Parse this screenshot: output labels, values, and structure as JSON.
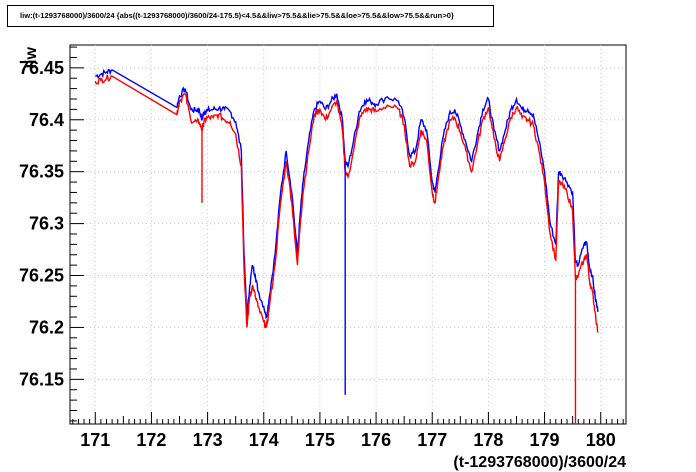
{
  "chart_data": {
    "type": "line",
    "title": "liw:(t-1293768000)/3600/24 {abs((t-1293768000)/3600/24-175.5)<4.5&&liw>75.5&&lie>75.5&&loe>75.5&&low>75.5&&run>0}",
    "xlabel": "(t-1293768000)/3600/24",
    "ylabel": "liw",
    "xlim": [
      170.55,
      180.45
    ],
    "ylim": [
      76.107,
      76.472
    ],
    "xticks": [
      171,
      172,
      173,
      174,
      175,
      176,
      177,
      178,
      179,
      180
    ],
    "yticks": [
      76.15,
      76.2,
      76.25,
      76.3,
      76.35,
      76.4,
      76.45
    ],
    "ytick_labels": [
      "76.15",
      "76.2",
      "76.25",
      "76.3",
      "76.35",
      "76.4",
      "76.45"
    ],
    "grid": true,
    "series": [
      {
        "color": "#0000ff",
        "x": [
          171.0,
          171.1,
          171.2,
          171.3,
          172.45,
          172.5,
          172.6,
          172.7,
          172.8,
          172.85,
          172.9,
          172.92,
          172.95,
          173.0,
          173.1,
          173.2,
          173.3,
          173.4,
          173.5,
          173.6,
          173.65,
          173.7,
          173.75,
          173.8,
          173.85,
          173.9,
          174.0,
          174.05,
          174.1,
          174.2,
          174.3,
          174.4,
          174.5,
          174.6,
          174.65,
          174.7,
          174.8,
          174.9,
          175.0,
          175.1,
          175.2,
          175.3,
          175.4,
          175.45,
          175.5,
          175.6,
          175.7,
          175.8,
          175.9,
          176.0,
          176.2,
          176.4,
          176.5,
          176.6,
          176.7,
          176.8,
          176.9,
          177.0,
          177.05,
          177.1,
          177.2,
          177.3,
          177.4,
          177.5,
          177.6,
          177.7,
          177.8,
          177.9,
          178.0,
          178.1,
          178.2,
          178.3,
          178.4,
          178.5,
          178.6,
          178.7,
          178.8,
          178.9,
          179.0,
          179.1,
          179.2,
          179.25,
          179.3,
          179.4,
          179.5,
          179.55,
          179.6,
          179.7,
          179.75,
          179.8,
          179.85,
          179.9,
          179.95
        ],
        "y": [
          76.442,
          76.444,
          76.446,
          76.448,
          76.412,
          76.423,
          76.43,
          76.41,
          76.409,
          76.41,
          76.4,
          76.405,
          76.408,
          76.409,
          76.41,
          76.411,
          76.41,
          76.408,
          76.398,
          76.37,
          76.27,
          76.21,
          76.24,
          76.26,
          76.25,
          76.235,
          76.22,
          76.21,
          76.23,
          76.27,
          76.33,
          76.37,
          76.33,
          76.27,
          76.31,
          76.34,
          76.38,
          76.41,
          76.418,
          76.41,
          76.418,
          76.425,
          76.4,
          76.36,
          76.355,
          76.38,
          76.408,
          76.418,
          76.418,
          76.415,
          76.422,
          76.418,
          76.402,
          76.365,
          76.37,
          76.4,
          76.39,
          76.34,
          76.33,
          76.35,
          76.385,
          76.405,
          76.41,
          76.395,
          76.378,
          76.36,
          76.385,
          76.41,
          76.42,
          76.39,
          76.37,
          76.39,
          76.41,
          76.42,
          76.41,
          76.41,
          76.405,
          76.38,
          76.35,
          76.3,
          76.28,
          76.35,
          76.348,
          76.34,
          76.33,
          76.262,
          76.26,
          76.28,
          76.282,
          76.258,
          76.25,
          76.23,
          76.215
        ]
      },
      {
        "color": "#ff0000",
        "x": [
          171.0,
          171.1,
          171.2,
          171.3,
          172.45,
          172.5,
          172.6,
          172.7,
          172.8,
          172.85,
          172.9,
          172.92,
          172.95,
          173.0,
          173.1,
          173.2,
          173.3,
          173.4,
          173.5,
          173.6,
          173.65,
          173.7,
          173.75,
          173.8,
          173.85,
          173.9,
          174.0,
          174.05,
          174.1,
          174.2,
          174.3,
          174.4,
          174.5,
          174.6,
          174.65,
          174.7,
          174.8,
          174.9,
          175.0,
          175.1,
          175.2,
          175.3,
          175.4,
          175.45,
          175.5,
          175.6,
          175.7,
          175.8,
          175.9,
          176.0,
          176.2,
          176.4,
          176.5,
          176.6,
          176.7,
          176.8,
          176.9,
          177.0,
          177.05,
          177.1,
          177.2,
          177.3,
          177.4,
          177.5,
          177.6,
          177.7,
          177.8,
          177.9,
          178.0,
          178.1,
          178.2,
          178.3,
          178.4,
          178.5,
          178.6,
          178.7,
          178.8,
          178.9,
          179.0,
          179.1,
          179.2,
          179.25,
          179.3,
          179.4,
          179.5,
          179.55,
          179.6,
          179.7,
          179.75,
          179.8,
          179.85,
          179.9,
          179.95
        ],
        "y": [
          76.437,
          76.438,
          76.44,
          76.442,
          76.405,
          76.418,
          76.425,
          76.4,
          76.398,
          76.398,
          76.39,
          76.395,
          76.4,
          76.402,
          76.402,
          76.405,
          76.4,
          76.398,
          76.386,
          76.355,
          76.255,
          76.2,
          76.23,
          76.24,
          76.23,
          76.22,
          76.205,
          76.2,
          76.22,
          76.26,
          76.32,
          76.36,
          76.32,
          76.26,
          76.3,
          76.33,
          76.37,
          76.405,
          76.41,
          76.4,
          76.41,
          76.418,
          76.39,
          76.35,
          76.345,
          76.37,
          76.4,
          76.41,
          76.41,
          76.408,
          76.414,
          76.41,
          76.395,
          76.355,
          76.36,
          76.39,
          76.38,
          76.33,
          76.32,
          76.34,
          76.375,
          76.397,
          76.402,
          76.388,
          76.37,
          76.35,
          76.375,
          76.4,
          76.412,
          76.382,
          76.36,
          76.382,
          76.402,
          76.412,
          76.402,
          76.4,
          76.395,
          76.37,
          76.34,
          76.29,
          76.265,
          76.34,
          76.338,
          76.33,
          76.312,
          76.245,
          76.25,
          76.265,
          76.27,
          76.245,
          76.235,
          76.215,
          76.195
        ]
      }
    ],
    "spikes": [
      {
        "color": "#ff0000",
        "x": 172.9,
        "y_low": 76.32
      },
      {
        "color": "#0000ff",
        "x": 175.45,
        "y_low": 76.135
      },
      {
        "color": "#ff0000",
        "x": 179.55,
        "y_low": 76.107
      }
    ]
  }
}
